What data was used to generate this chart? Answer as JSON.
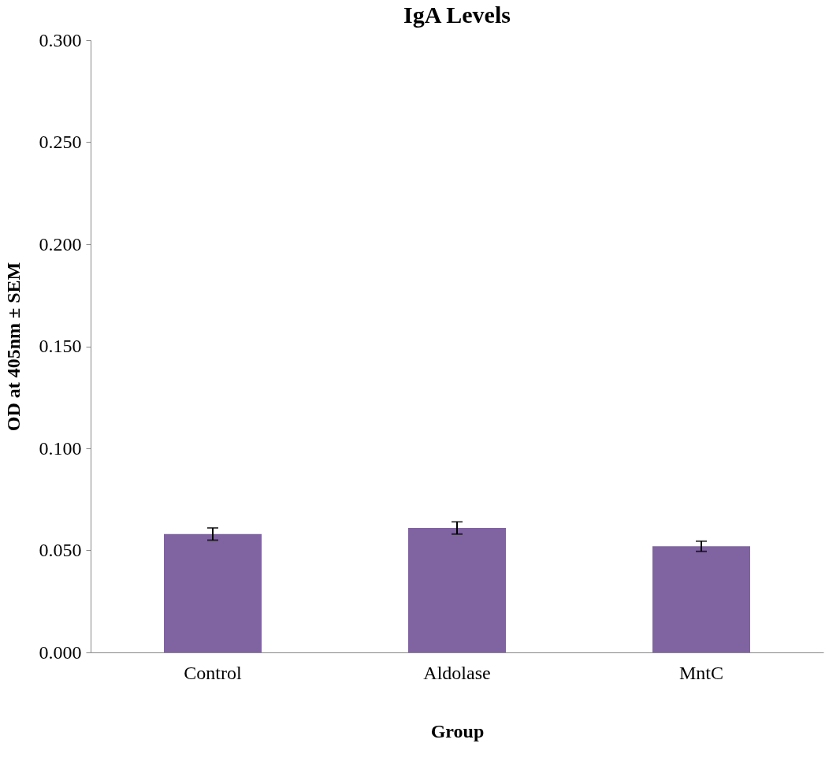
{
  "chart_data": {
    "type": "bar",
    "title": "IgA Levels",
    "xlabel": "Group",
    "ylabel": "OD at 405nm ± SEM",
    "categories": [
      "Control",
      "Aldolase",
      "MntC"
    ],
    "values": [
      0.058,
      0.061,
      0.052
    ],
    "errors": [
      0.003,
      0.003,
      0.0025
    ],
    "color": "#8064a2",
    "ylim": [
      0,
      0.3
    ],
    "yticks": [
      {
        "value": 0,
        "label": "0.000"
      },
      {
        "value": 0.05,
        "label": "0.050"
      },
      {
        "value": 0.1,
        "label": "0.100"
      },
      {
        "value": 0.15,
        "label": "0.150"
      },
      {
        "value": 0.2,
        "label": "0.200"
      },
      {
        "value": 0.25,
        "label": "0.250"
      },
      {
        "value": 0.3,
        "label": "0.300"
      }
    ],
    "grid": false
  }
}
